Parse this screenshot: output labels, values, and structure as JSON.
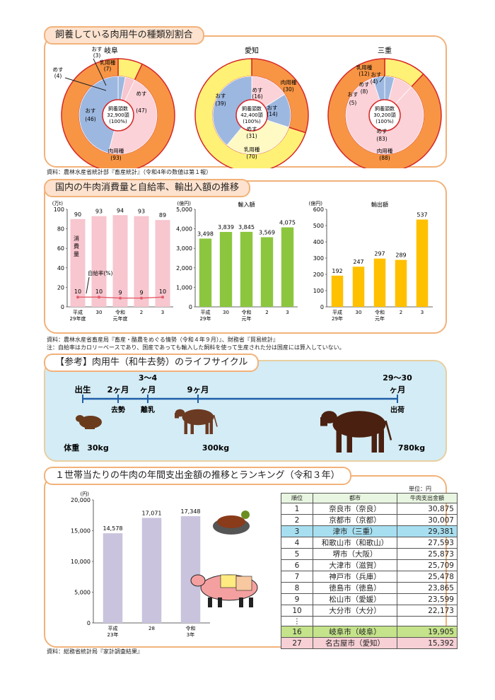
{
  "section1": {
    "title": "飼養している肉用牛の種類別割合",
    "source": "資料：農林水産省統計部『畜産統計』（令和4年の数値は第１報）",
    "center_label": "飼養頭数",
    "pies": [
      {
        "name": "岐阜",
        "total": "32,900頭",
        "pct": "(100%)",
        "outer": [
          {
            "label": "乳用種",
            "value": "(7)"
          },
          {
            "label": "肉用種",
            "value": "(93)"
          }
        ],
        "inner": [
          {
            "label": "おす",
            "value": "(3)"
          },
          {
            "label": "めす",
            "value": "(4)"
          },
          {
            "label": "めす",
            "value": "(47)"
          },
          {
            "label": "おす",
            "value": "(46)"
          }
        ]
      },
      {
        "name": "愛知",
        "total": "42,400頭",
        "pct": "(100%)",
        "outer": [
          {
            "label": "肉用種",
            "value": "(30)"
          },
          {
            "label": "乳用種",
            "value": "(70)"
          }
        ],
        "inner": [
          {
            "label": "めす",
            "value": "(16)"
          },
          {
            "label": "おす",
            "value": "(14)"
          },
          {
            "label": "めす",
            "value": "(31)"
          },
          {
            "label": "おす",
            "value": "(39)"
          }
        ]
      },
      {
        "name": "三重",
        "total": "30,200頭",
        "pct": "(100%)",
        "outer": [
          {
            "label": "乳用種",
            "value": "(12)"
          },
          {
            "label": "肉用種",
            "value": "(88)"
          }
        ],
        "inner": [
          {
            "label": "おす",
            "value": "(4)"
          },
          {
            "label": "めす",
            "value": "(8)"
          },
          {
            "label": "めす",
            "value": "(83)"
          },
          {
            "label": "おす",
            "value": "(5)"
          }
        ]
      }
    ]
  },
  "section2": {
    "title": "国内の牛肉消費量と自給率、輸出入額の推移",
    "source1": "資料：農林水産省畜産局『畜産・酪農をめぐる情勢（令和４年９月）』、財務省『貿易統計』",
    "source2": "注：自給率はカロリーベースであり、国産であっても輸入した飼料を使って生産された分は国産には算入していない。"
  },
  "section3": {
    "title": "【参考】肉用牛（和牛去勢）のライフサイクル",
    "stages": [
      {
        "top": "出生",
        "bottom": "",
        "weight": "体重　30kg"
      },
      {
        "top": "2ヶ月",
        "bottom": "去勢",
        "weight": ""
      },
      {
        "top_small": "3～4",
        "top": "ヶ月",
        "bottom": "離乳",
        "weight": ""
      },
      {
        "top": "9ヶ月",
        "bottom": "",
        "weight": "300kg"
      },
      {
        "top_small": "29～30",
        "top": "ヶ月",
        "bottom": "出荷",
        "weight": "780kg"
      }
    ]
  },
  "section4": {
    "title": "１世帯当たりの牛肉の年間支出金額の推移とランキング（令和３年）",
    "unit": "単位：円",
    "source": "資料：総務省統計局『家計調査結果』",
    "rank_headers": [
      "順位",
      "都市",
      "牛肉支出金額"
    ],
    "ranking": [
      {
        "rank": "1",
        "city": "奈良市（奈良）",
        "amount": "30,875"
      },
      {
        "rank": "2",
        "city": "京都市（京都）",
        "amount": "30,007"
      },
      {
        "rank": "3",
        "city": "津市（三重）",
        "amount": "29,381"
      },
      {
        "rank": "4",
        "city": "和歌山市（和歌山）",
        "amount": "27,593"
      },
      {
        "rank": "5",
        "city": "堺市（大阪）",
        "amount": "25,873"
      },
      {
        "rank": "6",
        "city": "大津市（滋賀）",
        "amount": "25,709"
      },
      {
        "rank": "7",
        "city": "神戸市（兵庫）",
        "amount": "25,478"
      },
      {
        "rank": "8",
        "city": "徳島市（徳島）",
        "amount": "23,865"
      },
      {
        "rank": "9",
        "city": "松山市（愛媛）",
        "amount": "23,599"
      },
      {
        "rank": "10",
        "city": "大分市（大分）",
        "amount": "22,173"
      },
      {
        "rank": "⋮",
        "city": "",
        "amount": ""
      },
      {
        "rank": "16",
        "city": "岐阜市（岐阜）",
        "amount": "19,905"
      },
      {
        "rank": "27",
        "city": "名古屋市（愛知）",
        "amount": "15,392"
      }
    ]
  },
  "chart_data": [
    {
      "type": "bar",
      "title": "",
      "ylabel": "(万t)",
      "bar_label": "消費量",
      "line_label": "自給率(%)",
      "categories": [
        "平成29年度",
        "30",
        "令和元年度",
        "2",
        "3"
      ],
      "series": [
        {
          "name": "消費量",
          "values": [
            90,
            93,
            94,
            93,
            89
          ]
        },
        {
          "name": "自給率(%)",
          "values": [
            10,
            10,
            9,
            9,
            10
          ]
        }
      ],
      "ylim": [
        0,
        100
      ],
      "yticks": [
        0,
        20,
        40,
        60,
        80,
        100
      ],
      "colors": {
        "bar": "#f7c6cf",
        "line": "#e45c6a"
      }
    },
    {
      "type": "bar",
      "title": "輸入額",
      "ylabel": "(億円)",
      "categories": [
        "平成29年",
        "30",
        "令和元年",
        "2",
        "3"
      ],
      "values": [
        3498,
        3839,
        3845,
        3569,
        4075
      ],
      "ylim": [
        0,
        5000
      ],
      "yticks": [
        0,
        1000,
        2000,
        3000,
        4000,
        5000
      ],
      "colors": {
        "bar": "#8cc63f"
      }
    },
    {
      "type": "bar",
      "title": "輸出額",
      "ylabel": "(億円)",
      "categories": [
        "平成29年",
        "30",
        "令和元年",
        "2",
        "3"
      ],
      "values": [
        192,
        247,
        297,
        289,
        537
      ],
      "ylim": [
        0,
        600
      ],
      "yticks": [
        0,
        100,
        200,
        300,
        400,
        500,
        600
      ],
      "colors": {
        "bar": "#ffc000"
      }
    },
    {
      "type": "bar",
      "title": "",
      "ylabel": "(円)",
      "categories": [
        "平成23年",
        "28",
        "令和3年"
      ],
      "values": [
        14578,
        17071,
        17348
      ],
      "ylim": [
        0,
        20000
      ],
      "yticks": [
        0,
        5000,
        10000,
        15000,
        20000
      ],
      "colors": {
        "bar": "#c9c3dd"
      }
    }
  ]
}
